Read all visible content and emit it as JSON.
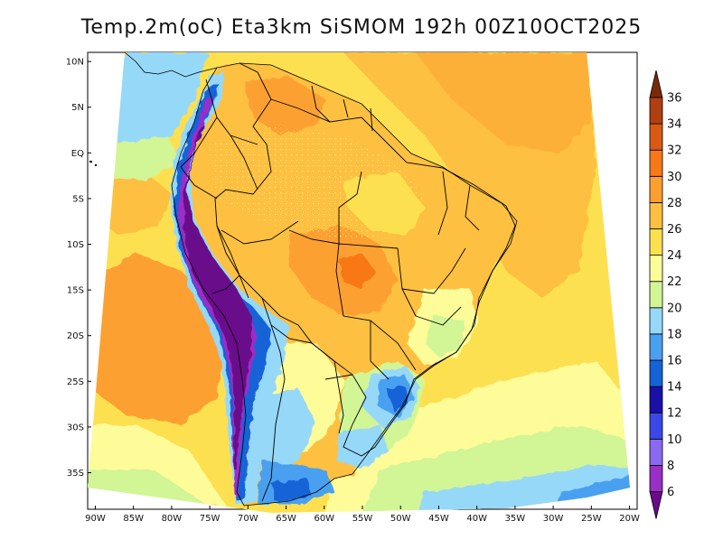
{
  "title": "Temp.2m(oC) Eta3km SiSMOM 192h 00Z10OCT2025",
  "map": {
    "variable": "2 m temperature",
    "units": "oC",
    "region": "South America / Brazil",
    "lon_range": [
      -91,
      -19
    ],
    "lat_range": [
      -39,
      11
    ]
  },
  "axes": {
    "lat_ticks": [
      {
        "value": 10,
        "label": "10N"
      },
      {
        "value": 5,
        "label": "5N"
      },
      {
        "value": 0,
        "label": "EQ"
      },
      {
        "value": -5,
        "label": "5S"
      },
      {
        "value": -10,
        "label": "10S"
      },
      {
        "value": -15,
        "label": "15S"
      },
      {
        "value": -20,
        "label": "20S"
      },
      {
        "value": -25,
        "label": "25S"
      },
      {
        "value": -30,
        "label": "30S"
      },
      {
        "value": -35,
        "label": "35S"
      }
    ],
    "lon_ticks": [
      {
        "value": -90,
        "label": "90W"
      },
      {
        "value": -85,
        "label": "85W"
      },
      {
        "value": -80,
        "label": "80W"
      },
      {
        "value": -75,
        "label": "75W"
      },
      {
        "value": -70,
        "label": "70W"
      },
      {
        "value": -65,
        "label": "65W"
      },
      {
        "value": -60,
        "label": "60W"
      },
      {
        "value": -55,
        "label": "55W"
      },
      {
        "value": -50,
        "label": "50W"
      },
      {
        "value": -45,
        "label": "45W"
      },
      {
        "value": -40,
        "label": "40W"
      },
      {
        "value": -35,
        "label": "35W"
      },
      {
        "value": -30,
        "label": "30W"
      },
      {
        "value": -25,
        "label": "25W"
      },
      {
        "value": -20,
        "label": "20W"
      }
    ]
  },
  "colorbar": {
    "levels": [
      "6",
      "8",
      "10",
      "12",
      "14",
      "16",
      "18",
      "20",
      "22",
      "24",
      "26",
      "28",
      "30",
      "32",
      "34",
      "36"
    ],
    "colors": [
      "#6a0a8a",
      "#9a2fc8",
      "#8a6af0",
      "#3a48e8",
      "#1a10a8",
      "#1464d8",
      "#4aa0f0",
      "#96d8f8",
      "#d2f596",
      "#fdfc98",
      "#fde050",
      "#fdc040",
      "#fda030",
      "#f87818",
      "#d85a14",
      "#b04010",
      "#7a2a0a"
    ],
    "colors_note": "colors run from below-6 (bottom triangle) to above-36 (top triangle)"
  }
}
